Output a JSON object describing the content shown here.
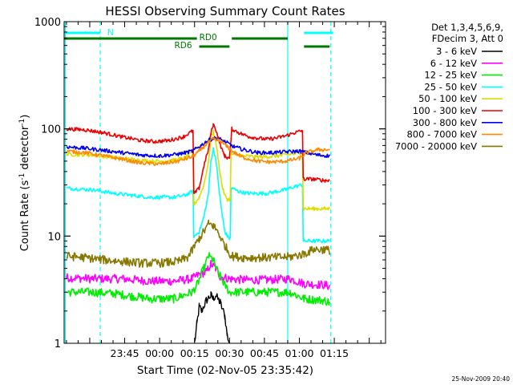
{
  "chart_data": {
    "type": "line",
    "title": "HESSI Observing Summary Count Rates",
    "xlabel": "Start Time (02-Nov-05 23:35:42)",
    "ylabel_main": "Count Rate (s",
    "ylabel_sup1": "-1",
    "ylabel_mid": " detector",
    "ylabel_sup2": "-1",
    "ylabel_end": ")",
    "yscale": "log",
    "ylim": [
      1,
      1000
    ],
    "xlim": [
      -17,
      121
    ],
    "x_unit": "minutes after 23:35:42",
    "x_ticks": [
      {
        "v": 9,
        "label": "23:45"
      },
      {
        "v": 24,
        "label": "00:00"
      },
      {
        "v": 39,
        "label": "00:15"
      },
      {
        "v": 54,
        "label": "00:30"
      },
      {
        "v": 69,
        "label": "00:45"
      },
      {
        "v": 84,
        "label": "01:00"
      },
      {
        "v": 99,
        "label": "01:15"
      }
    ],
    "y_ticks": [
      {
        "v": 1,
        "label": "1"
      },
      {
        "v": 10,
        "label": "10"
      },
      {
        "v": 100,
        "label": "100"
      },
      {
        "v": 1000,
        "label": "1000"
      }
    ],
    "legend_header": [
      "Det 1,3,4,5,6,9,",
      "FDecim 3, Att 0"
    ],
    "series": [
      {
        "name": "3 - 6 keV",
        "color": "#000000",
        "points": [
          [
            39,
            1
          ],
          [
            40,
            1.5
          ],
          [
            41,
            2.2
          ],
          [
            42,
            2.0
          ],
          [
            44,
            2.5
          ],
          [
            46,
            2.8
          ],
          [
            47,
            2.6
          ],
          [
            48,
            2.8
          ],
          [
            50,
            2.4
          ],
          [
            52,
            1.8
          ],
          [
            53,
            1.2
          ],
          [
            54,
            1
          ]
        ]
      },
      {
        "name": "6 - 12 keV",
        "color": "#ff00ff",
        "points": [
          [
            -16,
            4.1
          ],
          [
            -5,
            4.0
          ],
          [
            8,
            4.0
          ],
          [
            20,
            3.8
          ],
          [
            30,
            3.8
          ],
          [
            38,
            4.0
          ],
          [
            41,
            4.4
          ],
          [
            44,
            4.6
          ],
          [
            46,
            5.5
          ],
          [
            48,
            5.0
          ],
          [
            50,
            4.2
          ],
          [
            54,
            4.0
          ],
          [
            60,
            3.9
          ],
          [
            70,
            3.9
          ],
          [
            80,
            4.0
          ],
          [
            86,
            3.6
          ],
          [
            95,
            3.5
          ],
          [
            97,
            3.4
          ]
        ]
      },
      {
        "name": "12 - 25 keV",
        "color": "#00ee00",
        "points": [
          [
            -16,
            3.0
          ],
          [
            -5,
            3.0
          ],
          [
            5,
            2.9
          ],
          [
            20,
            2.6
          ],
          [
            30,
            2.6
          ],
          [
            38,
            3.0
          ],
          [
            40,
            3.5
          ],
          [
            43,
            5.0
          ],
          [
            45,
            6.5
          ],
          [
            47,
            6.0
          ],
          [
            49,
            4.6
          ],
          [
            52,
            3.5
          ],
          [
            54,
            3.0
          ],
          [
            60,
            3.0
          ],
          [
            70,
            3.0
          ],
          [
            80,
            3.0
          ],
          [
            86,
            2.6
          ],
          [
            95,
            2.5
          ],
          [
            97,
            2.4
          ]
        ]
      },
      {
        "name": "25 - 50 keV",
        "color": "#00ffff",
        "points": [
          [
            -16,
            28
          ],
          [
            -5,
            27
          ],
          [
            5,
            25
          ],
          [
            12,
            24
          ],
          [
            20,
            23
          ],
          [
            25,
            23
          ],
          [
            30,
            23
          ],
          [
            35,
            24
          ],
          [
            38,
            26
          ],
          [
            39,
            10
          ],
          [
            41,
            11
          ],
          [
            43,
            15
          ],
          [
            45,
            25
          ],
          [
            46,
            50
          ],
          [
            47,
            65
          ],
          [
            48,
            55
          ],
          [
            49,
            35
          ],
          [
            50,
            22
          ],
          [
            51,
            15
          ],
          [
            52,
            11
          ],
          [
            53,
            10
          ],
          [
            54,
            9.5
          ],
          [
            55,
            28
          ],
          [
            58,
            26
          ],
          [
            62,
            25
          ],
          [
            66,
            25
          ],
          [
            70,
            25
          ],
          [
            74,
            26
          ],
          [
            78,
            27
          ],
          [
            82,
            29
          ],
          [
            85,
            30
          ],
          [
            86,
            9
          ],
          [
            90,
            9
          ],
          [
            95,
            9
          ],
          [
            97,
            9
          ]
        ]
      },
      {
        "name": "50 - 100 keV",
        "color": "#dddd00",
        "points": [
          [
            -16,
            58
          ],
          [
            -5,
            57
          ],
          [
            5,
            54
          ],
          [
            12,
            52
          ],
          [
            20,
            50
          ],
          [
            25,
            50
          ],
          [
            30,
            51
          ],
          [
            35,
            54
          ],
          [
            38,
            60
          ],
          [
            39,
            20
          ],
          [
            41,
            23
          ],
          [
            43,
            30
          ],
          [
            45,
            50
          ],
          [
            46,
            80
          ],
          [
            47,
            95
          ],
          [
            48,
            80
          ],
          [
            49,
            55
          ],
          [
            50,
            38
          ],
          [
            51,
            28
          ],
          [
            52,
            24
          ],
          [
            53,
            22
          ],
          [
            54,
            22
          ],
          [
            55,
            58
          ],
          [
            60,
            56
          ],
          [
            65,
            55
          ],
          [
            70,
            55
          ],
          [
            75,
            56
          ],
          [
            80,
            58
          ],
          [
            85,
            60
          ],
          [
            86,
            18
          ],
          [
            90,
            18
          ],
          [
            95,
            18
          ],
          [
            97,
            18
          ]
        ]
      },
      {
        "name": "100 - 300 keV",
        "color": "#ee0000",
        "points": [
          [
            -16,
            100
          ],
          [
            -8,
            98
          ],
          [
            0,
            92
          ],
          [
            8,
            84
          ],
          [
            16,
            78
          ],
          [
            22,
            76
          ],
          [
            28,
            78
          ],
          [
            34,
            84
          ],
          [
            38,
            95
          ],
          [
            39,
            25
          ],
          [
            41,
            28
          ],
          [
            43,
            45
          ],
          [
            45,
            65
          ],
          [
            46,
            90
          ],
          [
            47,
            110
          ],
          [
            48,
            100
          ],
          [
            49,
            85
          ],
          [
            50,
            72
          ],
          [
            51,
            62
          ],
          [
            52,
            56
          ],
          [
            53,
            54
          ],
          [
            54,
            53
          ],
          [
            55,
            100
          ],
          [
            58,
            92
          ],
          [
            62,
            85
          ],
          [
            66,
            82
          ],
          [
            70,
            80
          ],
          [
            74,
            82
          ],
          [
            78,
            86
          ],
          [
            82,
            92
          ],
          [
            85,
            96
          ],
          [
            86,
            34
          ],
          [
            90,
            34
          ],
          [
            95,
            33
          ],
          [
            97,
            33
          ]
        ]
      },
      {
        "name": "300 - 800 keV",
        "color": "#0000ee",
        "points": [
          [
            -16,
            68
          ],
          [
            -8,
            66
          ],
          [
            0,
            63
          ],
          [
            8,
            60
          ],
          [
            16,
            57
          ],
          [
            24,
            56
          ],
          [
            32,
            58
          ],
          [
            38,
            62
          ],
          [
            41,
            68
          ],
          [
            44,
            76
          ],
          [
            47,
            82
          ],
          [
            50,
            80
          ],
          [
            53,
            74
          ],
          [
            56,
            68
          ],
          [
            60,
            64
          ],
          [
            66,
            60
          ],
          [
            72,
            60
          ],
          [
            78,
            61
          ],
          [
            84,
            62
          ],
          [
            87,
            60
          ],
          [
            92,
            57
          ],
          [
            97,
            56
          ]
        ]
      },
      {
        "name": "800 - 7000 keV",
        "color": "#ff8800",
        "points": [
          [
            -16,
            62
          ],
          [
            -8,
            60
          ],
          [
            0,
            56
          ],
          [
            8,
            52
          ],
          [
            16,
            48
          ],
          [
            24,
            47
          ],
          [
            32,
            50
          ],
          [
            38,
            55
          ],
          [
            41,
            62
          ],
          [
            44,
            72
          ],
          [
            47,
            80
          ],
          [
            50,
            77
          ],
          [
            53,
            68
          ],
          [
            56,
            60
          ],
          [
            60,
            54
          ],
          [
            66,
            50
          ],
          [
            72,
            49
          ],
          [
            78,
            50
          ],
          [
            84,
            53
          ],
          [
            87,
            60
          ],
          [
            92,
            64
          ],
          [
            97,
            64
          ]
        ]
      },
      {
        "name": "7000 - 20000 keV",
        "color": "#887700",
        "points": [
          [
            -16,
            6.5
          ],
          [
            -8,
            6.3
          ],
          [
            0,
            6.0
          ],
          [
            8,
            5.8
          ],
          [
            16,
            5.6
          ],
          [
            24,
            5.6
          ],
          [
            32,
            5.8
          ],
          [
            36,
            6.3
          ],
          [
            39,
            8
          ],
          [
            41,
            9.5
          ],
          [
            43,
            11
          ],
          [
            45,
            13
          ],
          [
            47,
            12.5
          ],
          [
            49,
            11
          ],
          [
            51,
            9
          ],
          [
            53,
            7.5
          ],
          [
            55,
            6.5
          ],
          [
            60,
            6.3
          ],
          [
            70,
            6.3
          ],
          [
            80,
            6.4
          ],
          [
            86,
            6.8
          ],
          [
            90,
            7.5
          ],
          [
            95,
            7.5
          ],
          [
            97,
            7.3
          ]
        ]
      }
    ],
    "state_bars": [
      {
        "label": "N",
        "color": "#00ffff",
        "row": 0,
        "segments": [
          [
            -17,
            -1.5
          ],
          [
            86,
            98.5
          ]
        ]
      },
      {
        "label": "RD0",
        "color": "#007700",
        "row": 1,
        "segments": [
          [
            -17,
            40
          ],
          [
            55,
            79
          ]
        ]
      },
      {
        "label": "RD6",
        "color": "#007700",
        "row": 2,
        "segments": [
          [
            41,
            54
          ],
          [
            86,
            97
          ]
        ]
      }
    ],
    "vlines": [
      {
        "x": -16.5,
        "color": "#00ffff",
        "style": "solid"
      },
      {
        "x": -1.5,
        "color": "#00ffff",
        "style": "dashed"
      },
      {
        "x": 79,
        "color": "#00ffff",
        "style": "solid"
      },
      {
        "x": 97.5,
        "color": "#00ffff",
        "style": "dashed"
      }
    ],
    "grid": false,
    "legend_position": "right"
  },
  "footer_date": "25-Nov-2009 20:40"
}
